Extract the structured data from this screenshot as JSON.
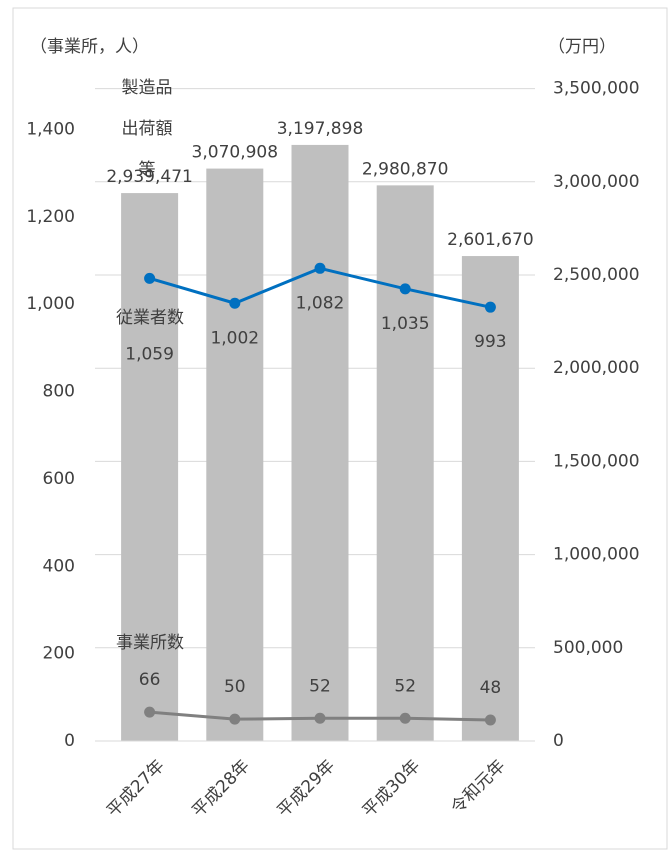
{
  "chart_data": {
    "type": "bar_line_combo",
    "y_axis_label": "（事業所，人）",
    "y2_axis_label": "（万円）",
    "categories": [
      "平成27年",
      "平成28年",
      "平成29年",
      "平成30年",
      "令和元年"
    ],
    "ylim": [
      0,
      1600
    ],
    "yticks": [
      0,
      {
        "value": 200,
        "label": "200"
      },
      {
        "value": 400,
        "label": "400"
      },
      {
        "value": 600,
        "label": "600"
      },
      {
        "value": 800,
        "label": "800"
      },
      {
        "value": 1000,
        "label": "1,000"
      },
      {
        "value": 1200,
        "label": "1,200"
      },
      {
        "value": 1400,
        "label": "1,400"
      }
    ],
    "y2lim": [
      0,
      3750000
    ],
    "y2ticks": [
      0,
      {
        "value": 500000,
        "label": "500,000"
      },
      {
        "value": 1000000,
        "label": "1,000,000"
      },
      {
        "value": 1500000,
        "label": "1,500,000"
      },
      {
        "value": 2000000,
        "label": "2,000,000"
      },
      {
        "value": 2500000,
        "label": "2,500,000"
      },
      {
        "value": 3000000,
        "label": "3,000,000"
      },
      {
        "value": 3500000,
        "label": "3,500,000"
      }
    ],
    "grid": true,
    "series": [
      {
        "name": "製造品出荷額等",
        "type": "bar",
        "axis": "y2",
        "color": "#bfbfbf",
        "values": [
          2939471,
          3070908,
          3197898,
          2980870,
          2601670
        ],
        "value_labels": [
          "2,939,471",
          "3,070,908",
          "3,197,898",
          "2,980,870",
          "2,601,670"
        ]
      },
      {
        "name": "従業者数",
        "type": "line",
        "color": "#0070c0",
        "values": [
          1059,
          1002,
          1082,
          1035,
          993
        ],
        "value_labels": [
          "1,059",
          "1,002",
          "1,082",
          "1,035",
          "993"
        ]
      },
      {
        "name": "事業所数",
        "type": "line",
        "color": "#808080",
        "values": [
          66,
          50,
          52,
          52,
          48
        ]
      }
    ]
  }
}
